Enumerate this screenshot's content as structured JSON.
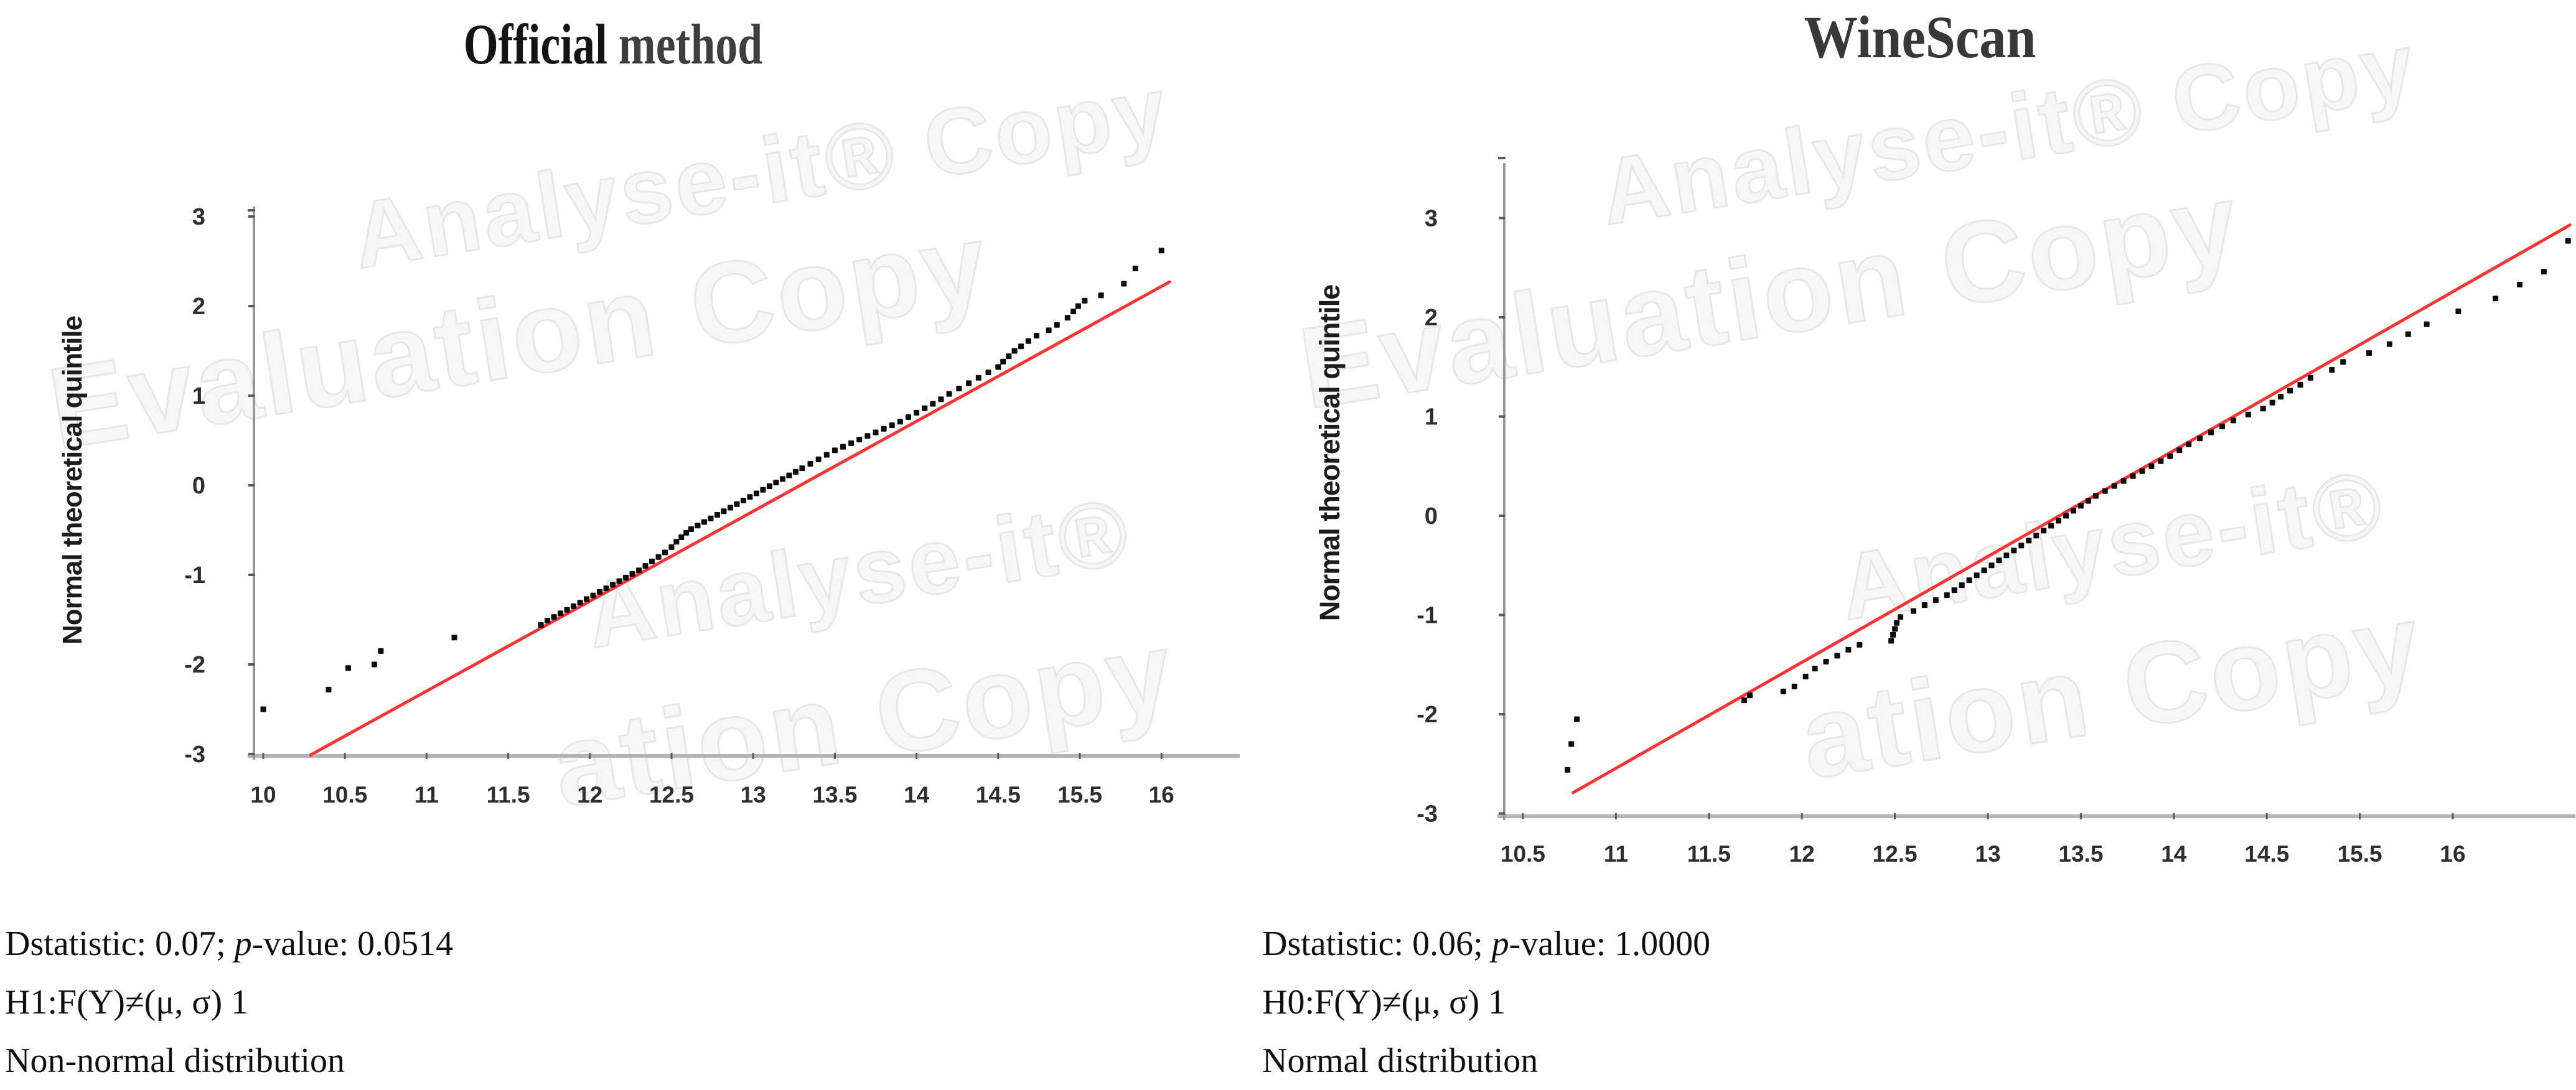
{
  "figure": {
    "background": "#ffffff",
    "watermark_lines": [
      "Analyse-it® Copy",
      "Evaluation Copy",
      "Analyse-it®",
      "ation Copy"
    ]
  },
  "colors": {
    "fit_line": "#f93434",
    "point": "#0b0b0b",
    "y_axis": "#979797",
    "x_axis": "#b5b5b5",
    "tick_mark": "#5a5a5a",
    "tick_text": "#2e2e2e",
    "watermark": "#e7e7e7"
  },
  "charts": [
    {
      "title_part1": "Official ",
      "title_part2": "method",
      "y_axis_label": "Normal theoretical quintile",
      "caption": {
        "stat_prefix": "Dstatistic: 0.07; ",
        "p_italic": "p",
        "stat_suffix": "-value: 0.0514",
        "hypothesis": "H1:F(Y)≠(μ, σ) 1",
        "conclusion": "Non-normal distribution"
      },
      "chart_data": {
        "type": "scatter",
        "title": "Official method",
        "xlabel": "",
        "ylabel": "Normal theoretical quintile",
        "x_tick_labels": [
          "10",
          "10.5",
          "11",
          "11.5",
          "12",
          "12.5",
          "13",
          "13.5",
          "14",
          "14.5",
          "15.5",
          "16"
        ],
        "x_ticks": [
          10,
          10.5,
          11,
          11.5,
          12,
          12.5,
          13,
          13.5,
          14,
          14.5,
          15.5,
          16
        ],
        "y_tick_labels": [
          "3",
          "2",
          "1",
          "0",
          "-1",
          "-2",
          "-3"
        ],
        "y_ticks": [
          3,
          2,
          1,
          0,
          -1,
          -2,
          -3
        ],
        "y_range": [
          -3.1,
          3.4
        ],
        "grid": false,
        "legend": "none",
        "fit_line": [
          [
            10.29,
            -3.01
          ],
          [
            16.05,
            2.27
          ]
        ],
        "points": [
          [
            10.0,
            -2.5
          ],
          [
            10.4,
            -2.28
          ],
          [
            10.52,
            -2.04
          ],
          [
            10.68,
            -2.0
          ],
          [
            10.72,
            -1.85
          ],
          [
            11.17,
            -1.7
          ],
          [
            11.7,
            -1.56
          ],
          [
            11.74,
            -1.51
          ],
          [
            11.78,
            -1.47
          ],
          [
            11.82,
            -1.43
          ],
          [
            11.86,
            -1.39
          ],
          [
            11.9,
            -1.35
          ],
          [
            11.94,
            -1.31
          ],
          [
            11.98,
            -1.27
          ],
          [
            12.02,
            -1.23
          ],
          [
            12.06,
            -1.19
          ],
          [
            12.1,
            -1.15
          ],
          [
            12.14,
            -1.11
          ],
          [
            12.18,
            -1.07
          ],
          [
            12.22,
            -1.03
          ],
          [
            12.26,
            -0.99
          ],
          [
            12.3,
            -0.95
          ],
          [
            12.34,
            -0.9
          ],
          [
            12.38,
            -0.85
          ],
          [
            12.42,
            -0.8
          ],
          [
            12.46,
            -0.75
          ],
          [
            12.5,
            -0.69
          ],
          [
            12.53,
            -0.63
          ],
          [
            12.56,
            -0.58
          ],
          [
            12.59,
            -0.53
          ],
          [
            12.62,
            -0.49
          ],
          [
            12.66,
            -0.45
          ],
          [
            12.7,
            -0.41
          ],
          [
            12.74,
            -0.37
          ],
          [
            12.78,
            -0.33
          ],
          [
            12.82,
            -0.29
          ],
          [
            12.86,
            -0.25
          ],
          [
            12.9,
            -0.21
          ],
          [
            12.94,
            -0.17
          ],
          [
            12.98,
            -0.13
          ],
          [
            13.02,
            -0.09
          ],
          [
            13.06,
            -0.05
          ],
          [
            13.1,
            -0.01
          ],
          [
            13.14,
            0.03
          ],
          [
            13.18,
            0.07
          ],
          [
            13.22,
            0.11
          ],
          [
            13.26,
            0.15
          ],
          [
            13.3,
            0.19
          ],
          [
            13.35,
            0.24
          ],
          [
            13.4,
            0.29
          ],
          [
            13.45,
            0.34
          ],
          [
            13.5,
            0.39
          ],
          [
            13.55,
            0.43
          ],
          [
            13.6,
            0.47
          ],
          [
            13.65,
            0.51
          ],
          [
            13.7,
            0.55
          ],
          [
            13.75,
            0.59
          ],
          [
            13.8,
            0.63
          ],
          [
            13.85,
            0.67
          ],
          [
            13.9,
            0.71
          ],
          [
            13.95,
            0.76
          ],
          [
            14.0,
            0.81
          ],
          [
            14.05,
            0.86
          ],
          [
            14.1,
            0.91
          ],
          [
            14.15,
            0.96
          ],
          [
            14.2,
            1.02
          ],
          [
            14.26,
            1.08
          ],
          [
            14.32,
            1.14
          ],
          [
            14.38,
            1.2
          ],
          [
            14.44,
            1.26
          ],
          [
            14.5,
            1.32
          ],
          [
            14.56,
            1.38
          ],
          [
            14.63,
            1.44
          ],
          [
            14.7,
            1.5
          ],
          [
            14.78,
            1.55
          ],
          [
            14.87,
            1.61
          ],
          [
            14.97,
            1.67
          ],
          [
            15.12,
            1.73
          ],
          [
            15.22,
            1.79
          ],
          [
            15.35,
            1.87
          ],
          [
            15.42,
            1.94
          ],
          [
            15.48,
            2.0
          ],
          [
            15.53,
            2.06
          ],
          [
            15.63,
            2.12
          ],
          [
            15.77,
            2.25
          ],
          [
            15.84,
            2.42
          ],
          [
            16.0,
            2.62
          ]
        ]
      }
    },
    {
      "title_part1": "WineScan",
      "title_part2": "",
      "y_axis_label": "Normal theoretical quintile",
      "caption": {
        "stat_prefix": "Dstatistic: 0.06; ",
        "p_italic": "p",
        "stat_suffix": "-value: 1.0000",
        "hypothesis": "H0:F(Y)≠(μ, σ) 1",
        "conclusion": "Normal distribution"
      },
      "chart_data": {
        "type": "scatter",
        "title": "WineScan",
        "xlabel": "",
        "ylabel": "Normal theoretical quintile",
        "x_tick_labels": [
          "10.5",
          "11",
          "11.5",
          "12",
          "12.5",
          "13",
          "13.5",
          "14",
          "14.5",
          "15.5",
          "16"
        ],
        "x_ticks": [
          10.5,
          11,
          11.5,
          12,
          12.5,
          13,
          13.5,
          14,
          14.5,
          15.5,
          16
        ],
        "y_tick_labels": [
          "3",
          "2",
          "1",
          "0",
          "-1",
          "-2",
          "-3"
        ],
        "y_ticks": [
          3,
          2,
          1,
          0,
          -1,
          -2,
          -3
        ],
        "y_range": [
          -3.0,
          3.5
        ],
        "grid": false,
        "legend": "none",
        "fit_line": [
          [
            10.77,
            -2.79
          ],
          [
            16.63,
            2.93
          ]
        ],
        "points": [
          [
            10.74,
            -2.56
          ],
          [
            10.76,
            -2.3
          ],
          [
            10.79,
            -2.05
          ],
          [
            11.69,
            -1.86
          ],
          [
            11.72,
            -1.81
          ],
          [
            11.9,
            -1.77
          ],
          [
            11.96,
            -1.72
          ],
          [
            12.02,
            -1.62
          ],
          [
            12.07,
            -1.54
          ],
          [
            12.13,
            -1.47
          ],
          [
            12.19,
            -1.41
          ],
          [
            12.25,
            -1.35
          ],
          [
            12.31,
            -1.3
          ],
          [
            12.48,
            -1.26
          ],
          [
            12.49,
            -1.2
          ],
          [
            12.5,
            -1.14
          ],
          [
            12.51,
            -1.08
          ],
          [
            12.53,
            -1.02
          ],
          [
            12.6,
            -0.96
          ],
          [
            12.66,
            -0.9
          ],
          [
            12.72,
            -0.85
          ],
          [
            12.78,
            -0.8
          ],
          [
            12.82,
            -0.75
          ],
          [
            12.86,
            -0.7
          ],
          [
            12.9,
            -0.65
          ],
          [
            12.94,
            -0.6
          ],
          [
            12.98,
            -0.55
          ],
          [
            13.02,
            -0.5
          ],
          [
            13.06,
            -0.45
          ],
          [
            13.1,
            -0.4
          ],
          [
            13.14,
            -0.35
          ],
          [
            13.18,
            -0.3
          ],
          [
            13.22,
            -0.25
          ],
          [
            13.26,
            -0.2
          ],
          [
            13.3,
            -0.15
          ],
          [
            13.34,
            -0.1
          ],
          [
            13.38,
            -0.05
          ],
          [
            13.42,
            0.0
          ],
          [
            13.46,
            0.05
          ],
          [
            13.5,
            0.1
          ],
          [
            13.54,
            0.15
          ],
          [
            13.58,
            0.2
          ],
          [
            13.63,
            0.25
          ],
          [
            13.68,
            0.3
          ],
          [
            13.73,
            0.35
          ],
          [
            13.78,
            0.4
          ],
          [
            13.83,
            0.45
          ],
          [
            13.88,
            0.5
          ],
          [
            13.93,
            0.55
          ],
          [
            13.98,
            0.6
          ],
          [
            14.03,
            0.66
          ],
          [
            14.08,
            0.72
          ],
          [
            14.14,
            0.78
          ],
          [
            14.2,
            0.84
          ],
          [
            14.26,
            0.9
          ],
          [
            14.32,
            0.96
          ],
          [
            14.4,
            1.02
          ],
          [
            14.48,
            1.08
          ],
          [
            14.56,
            1.14
          ],
          [
            14.65,
            1.2
          ],
          [
            14.75,
            1.26
          ],
          [
            14.86,
            1.32
          ],
          [
            14.97,
            1.39
          ],
          [
            15.2,
            1.47
          ],
          [
            15.32,
            1.55
          ],
          [
            15.55,
            1.64
          ],
          [
            15.66,
            1.73
          ],
          [
            15.76,
            1.83
          ],
          [
            15.86,
            1.93
          ],
          [
            16.03,
            2.06
          ],
          [
            16.23,
            2.19
          ],
          [
            16.36,
            2.33
          ],
          [
            16.49,
            2.46
          ],
          [
            16.62,
            2.77
          ]
        ]
      }
    }
  ]
}
